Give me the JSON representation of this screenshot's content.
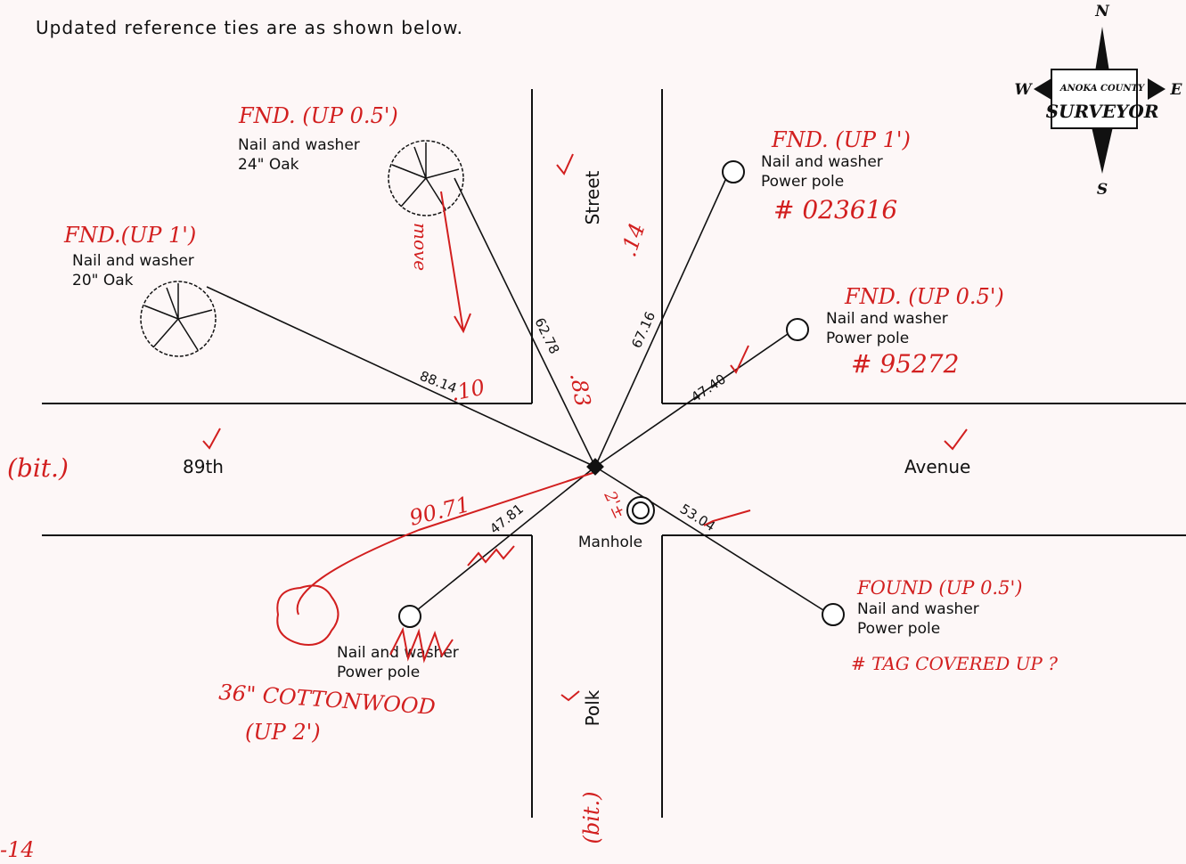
{
  "header": {
    "text": "Updated reference ties are as shown below."
  },
  "compass": {
    "north": "N",
    "south": "S",
    "west": "W",
    "east": "E",
    "agency": "ANOKA COUNTY",
    "title": "SURVEYOR"
  },
  "streets": {
    "avenue_west": "89th",
    "avenue_east": "Avenue",
    "street_north": "Street",
    "street_south": "Polk",
    "manhole": "Manhole"
  },
  "ties": [
    {
      "label": [
        "Nail and washer",
        "24\" Oak"
      ],
      "distance": "62.78",
      "status": "FND. (UP 0.5')",
      "correction": ".83"
    },
    {
      "label": [
        "Nail and washer",
        "20\" Oak"
      ],
      "distance": "88.14",
      "status": "FND.(UP 1')",
      "correction": ".10"
    },
    {
      "label": [
        "Nail and washer",
        "Power pole"
      ],
      "distance": "67.16",
      "status": "FND. (UP 1')",
      "correction": ".14",
      "tag": "# 023616"
    },
    {
      "label": [
        "Nail and washer",
        "Power pole"
      ],
      "distance": "47.40",
      "status": "FND. (UP 0.5')",
      "tag": "# 95272"
    },
    {
      "label": [
        "Nail and washer",
        "Power pole"
      ],
      "distance": "53.04",
      "status": "FOUND (UP 0.5')",
      "tag": "# TAG COVERED UP ?"
    },
    {
      "label": [
        "Nail and washer",
        "Power pole"
      ],
      "distance": "47.81"
    }
  ],
  "annotations": {
    "move": "move",
    "new_tie_distance": "90.71",
    "new_tie_object": "36\" COTTONWOOD",
    "new_tie_status": "(UP 2')",
    "manhole_offset": "2'±",
    "surface_avenue": "(bit.)",
    "surface_street": "(bit.)",
    "page_mark": "-14"
  }
}
